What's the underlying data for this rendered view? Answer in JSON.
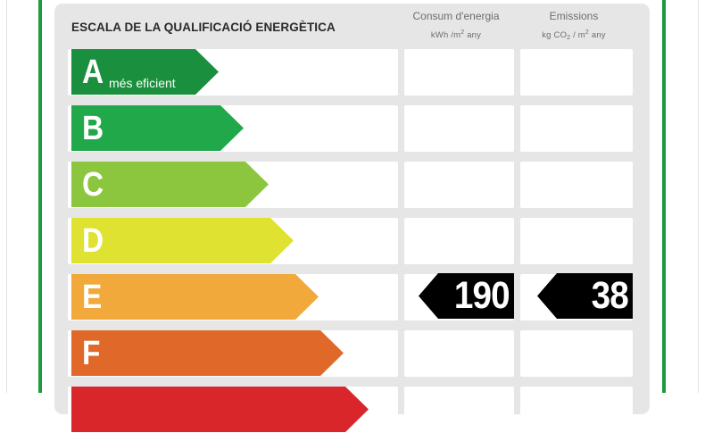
{
  "header": {
    "title": "ESCALA DE LA QUALIFICACIÓ ENERGÈTICA"
  },
  "columns": {
    "consumption": {
      "title": "Consum d'energia",
      "unit_prefix": "kWh /m",
      "unit_exp": "2",
      "unit_suffix": " any"
    },
    "emissions": {
      "title": "Emissions",
      "unit_prefix": "kg CO",
      "unit_sub": "2",
      "unit_mid": " / m",
      "unit_exp": "2",
      "unit_suffix": "  any"
    }
  },
  "scale": {
    "items": [
      {
        "letter": "A",
        "note": "més eficient",
        "color": "#1a8f3d"
      },
      {
        "letter": "B",
        "note": "",
        "color": "#21a84a"
      },
      {
        "letter": "C",
        "note": "",
        "color": "#8cc63f"
      },
      {
        "letter": "D",
        "note": "",
        "color": "#dfe230"
      },
      {
        "letter": "E",
        "note": "",
        "color": "#f0a93a"
      },
      {
        "letter": "F",
        "note": "",
        "color": "#e0692a"
      },
      {
        "letter": "",
        "note": "",
        "color": "#d8262b"
      }
    ]
  },
  "rating": {
    "consumption_value": "190",
    "emissions_value": "38"
  }
}
